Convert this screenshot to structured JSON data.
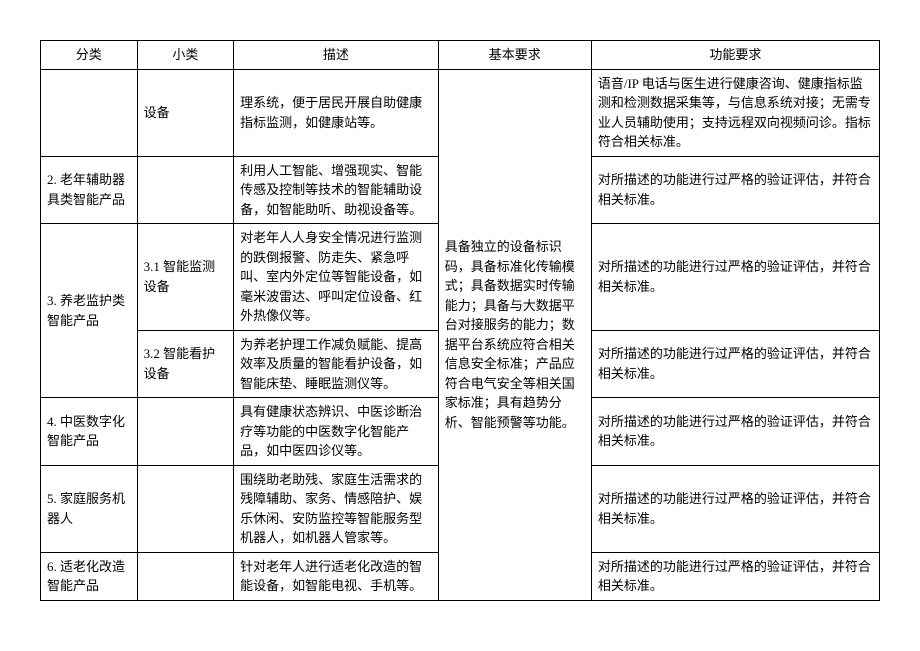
{
  "headers": {
    "category": "分类",
    "subcategory": "小类",
    "description": "描述",
    "basicreq": "基本要求",
    "funcreq": "功能要求"
  },
  "rows": {
    "r1": {
      "subcategory": "设备",
      "description": "理系统，便于居民开展自助健康指标监测，如健康站等。",
      "funcreq": "语音/IP 电话与医生进行健康咨询、健康指标监测和检测数据采集等，与信息系统对接；无需专业人员辅助使用；支持远程双向视频问诊。指标符合相关标准。"
    },
    "r2": {
      "category": "2. 老年辅助器具类智能产品",
      "description": "利用人工智能、增强现实、智能传感及控制等技术的智能辅助设备，如智能助听、助视设备等。",
      "funcreq": "对所描述的功能进行过严格的验证评估，并符合相关标准。"
    },
    "r3": {
      "category": "3. 养老监护类智能产品",
      "sub1": "3.1 智能监测设备",
      "desc1": "对老年人人身安全情况进行监测的跌倒报警、防走失、紧急呼叫、室内外定位等智能设备，如毫米波雷达、呼叫定位设备、红外热像仪等。",
      "func1": "对所描述的功能进行过严格的验证评估，并符合相关标准。",
      "sub2": "3.2 智能看护设备",
      "desc2": "为养老护理工作减负赋能、提高效率及质量的智能看护设备，如智能床垫、睡眠监测仪等。",
      "func2": "对所描述的功能进行过严格的验证评估，并符合相关标准。"
    },
    "r4": {
      "category": "4. 中医数字化智能产品",
      "description": "具有健康状态辨识、中医诊断治疗等功能的中医数字化智能产品，如中医四诊仪等。",
      "funcreq": "对所描述的功能进行过严格的验证评估，并符合相关标准。"
    },
    "r5": {
      "category": "5. 家庭服务机器人",
      "description": "围绕助老助残、家庭生活需求的残障辅助、家务、情感陪护、娱乐休闲、安防监控等智能服务型机器人，如机器人管家等。",
      "funcreq": "对所描述的功能进行过严格的验证评估，并符合相关标准。"
    },
    "r6": {
      "category": "6. 适老化改造智能产品",
      "description": "针对老年人进行适老化改造的智能设备，如智能电视、手机等。",
      "funcreq": "对所描述的功能进行过严格的验证评估，并符合相关标准。"
    },
    "basicreq_merged": "具备独立的设备标识码，具备标准化传输模式；具备数据实时传输能力；具备与大数据平台对接服务的能力；数据平台系统应符合相关信息安全标准；产品应符合电气安全等相关国家标准；具有趋势分析、智能预警等功能。"
  }
}
